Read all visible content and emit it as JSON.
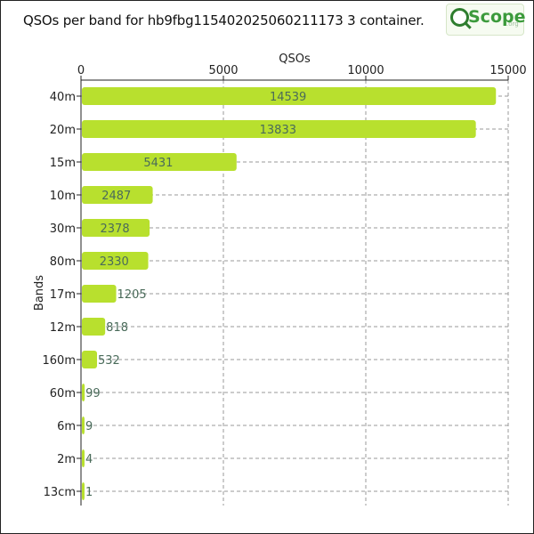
{
  "page": {
    "title": "QSOs per band for hb9fbg115402025060211173 3 container.",
    "logo": {
      "text": "Scope",
      "tld": ".org"
    }
  },
  "chart_data": {
    "type": "bar",
    "orientation": "horizontal",
    "title": "QSOs per band for hb9fbg115402025060211173 3 container.",
    "xlabel": "QSOs",
    "ylabel": "Bands",
    "xlim": [
      0,
      15000
    ],
    "xticks": [
      0,
      5000,
      10000,
      15000
    ],
    "x_axis_position": "top",
    "grid": true,
    "categories": [
      "40m",
      "20m",
      "15m",
      "10m",
      "30m",
      "80m",
      "17m",
      "12m",
      "160m",
      "60m",
      "6m",
      "2m",
      "13cm"
    ],
    "values": [
      14539,
      13833,
      5431,
      2487,
      2378,
      2330,
      1205,
      818,
      532,
      99,
      9,
      4,
      1
    ],
    "colors": {
      "bar": "#b8e02e",
      "grid": "#9a9a9a",
      "label": "#4a6b5a"
    }
  }
}
